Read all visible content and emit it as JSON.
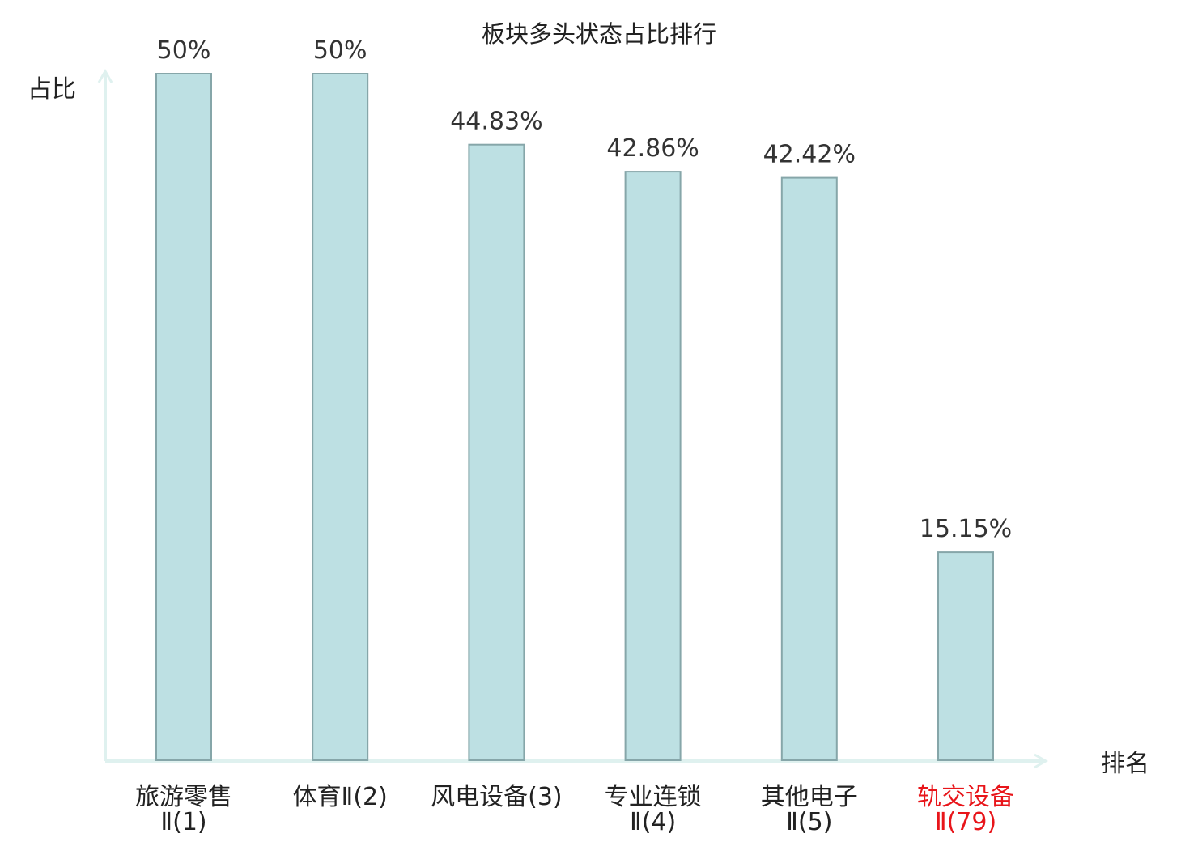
{
  "chart_data": {
    "type": "bar",
    "title": "板块多头状态占比排行",
    "ylabel": "占比",
    "xlabel": "排名",
    "ylim": [
      0,
      50
    ],
    "grid": false,
    "categories": [
      {
        "line1": "旅游零售",
        "line2": "Ⅱ(1)"
      },
      {
        "line1": "体育Ⅱ(2)",
        "line2": ""
      },
      {
        "line1": "风电设备(3)",
        "line2": ""
      },
      {
        "line1": "专业连锁",
        "line2": "Ⅱ(4)"
      },
      {
        "line1": "其他电子",
        "line2": "Ⅱ(5)"
      },
      {
        "line1": "轨交设备",
        "line2": "Ⅱ(79)",
        "highlight": true
      }
    ],
    "values": [
      50,
      50,
      44.83,
      42.86,
      42.42,
      15.15
    ],
    "data_labels": [
      "50%",
      "50%",
      "44.83%",
      "42.86%",
      "42.42%",
      "15.15%"
    ],
    "colors": {
      "bar_fill": "#bde0e3",
      "bar_stroke": "#86a6a9",
      "axis": "#dff1ef",
      "highlight_text": "#e8151a",
      "text": "#222222"
    }
  }
}
